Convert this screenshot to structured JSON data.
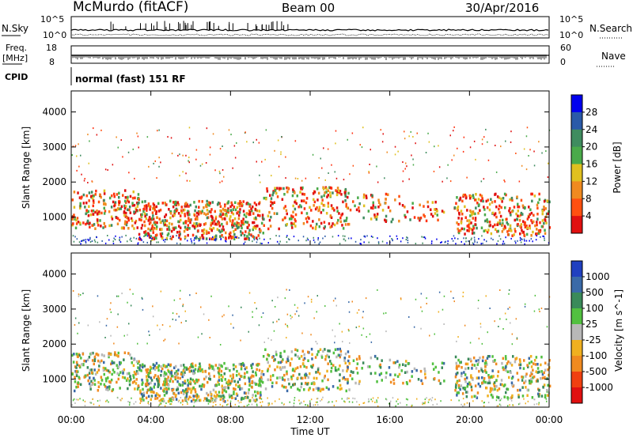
{
  "header": {
    "station": "McMurdo (fitACF)",
    "beam": "Beam 00",
    "date": "30/Apr/2016"
  },
  "params": {
    "nsky_label": "N.Sky",
    "nsky_tick_top": "10^5",
    "nsky_tick_bottom": "10^0",
    "nsearch_label": "N.Search",
    "nsearch_tick_top": "10^5",
    "nsearch_tick_bottom": "10^0",
    "freq_label_1": "Freq.",
    "freq_label_2": "[MHz]",
    "freq_tick_top": "18",
    "freq_tick_bottom": "8",
    "nave_label": "Nave",
    "nave_tick_top": "60",
    "nave_tick_bottom": "0",
    "cpid_label": "CPID",
    "cpid_text": "normal (fast) 151 RF"
  },
  "chart_data": [
    {
      "type": "heatmap",
      "name": "power",
      "ylabel": "Slant Range [km]",
      "ylim": [
        200,
        4600
      ],
      "yticks": [
        "1000",
        "2000",
        "3000",
        "4000"
      ],
      "colorbar_label": "Power [dB]",
      "colorbar_ticks": [
        "4",
        "8",
        "12",
        "16",
        "20",
        "24",
        "28"
      ],
      "colorbar_colors": [
        "#0000ee",
        "#2a5aa8",
        "#3f8c5f",
        "#4aaa4a",
        "#e0c020",
        "#f08a20",
        "#ff5010",
        "#e01010"
      ]
    },
    {
      "type": "heatmap",
      "name": "velocity",
      "ylabel": "Slant Range [km]",
      "ylim": [
        200,
        4600
      ],
      "yticks": [
        "1000",
        "2000",
        "3000",
        "4000"
      ],
      "colorbar_label": "Velocity [m s^-1]",
      "colorbar_ticks": [
        "1000",
        "500",
        "100",
        "25",
        "-25",
        "-100",
        "-500",
        "-1000"
      ],
      "colorbar_colors": [
        "#2040c0",
        "#3a6aa8",
        "#3a8a5a",
        "#52c040",
        "#b8b8b8",
        "#f0b020",
        "#f08a20",
        "#f04010",
        "#e01010"
      ]
    }
  ],
  "xaxis": {
    "label": "Time UT",
    "ticks": [
      "00:00",
      "04:00",
      "08:00",
      "12:00",
      "16:00",
      "20:00",
      "00:00"
    ]
  }
}
